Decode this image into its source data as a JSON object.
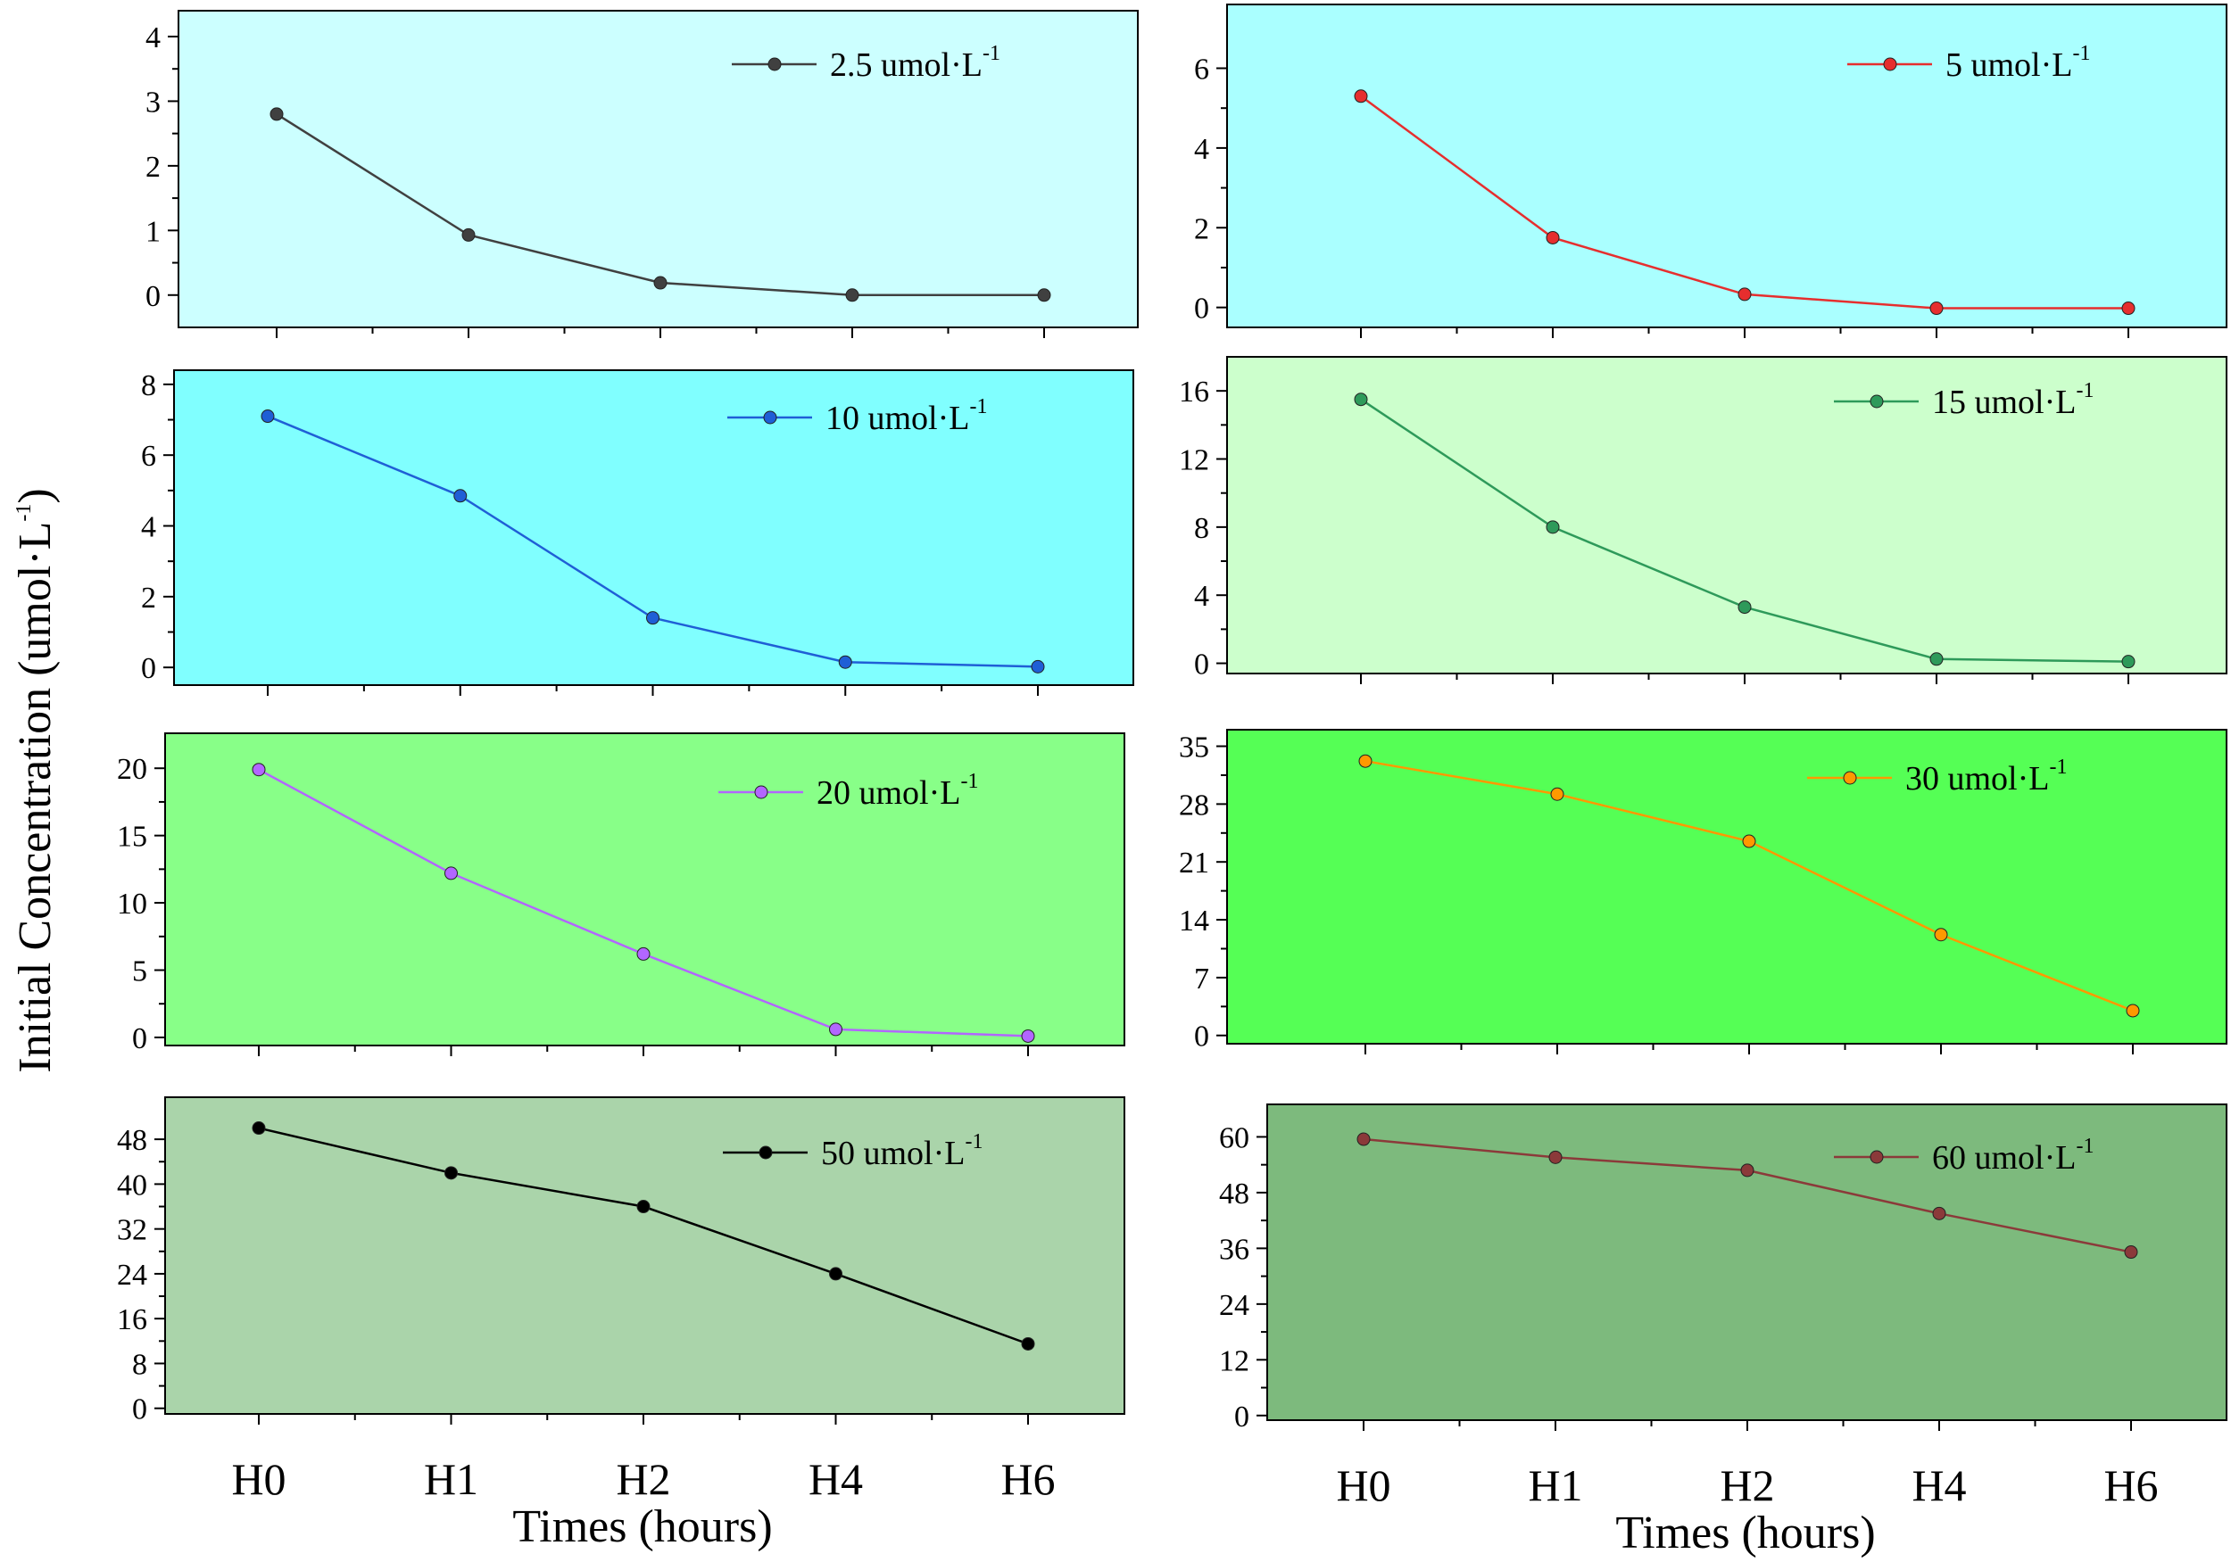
{
  "figure": {
    "ylabel": "Initial Concentration (umol·L",
    "ylabel_sup": "-1",
    "ylabel_tail": ")",
    "xlabel_left": "Times (hours)",
    "xlabel_right": "Times (hours)"
  },
  "chart_data": [
    {
      "type": "line",
      "categories": [
        "H0",
        "H1",
        "H2",
        "H4",
        "H6"
      ],
      "series": [
        {
          "name": "2.5 umol·L",
          "name_sup": "-1",
          "values": [
            2.8,
            0.93,
            0.19,
            0.0,
            0.0
          ],
          "color": "#404040"
        }
      ],
      "ylim": [
        -0.5,
        4.4
      ],
      "yticks": [
        0,
        1,
        2,
        3,
        4
      ],
      "background": "#ccffff"
    },
    {
      "type": "line",
      "categories": [
        "H0",
        "H1",
        "H2",
        "H4",
        "H6"
      ],
      "series": [
        {
          "name": "5 umol·L",
          "name_sup": "-1",
          "values": [
            5.3,
            1.75,
            0.33,
            -0.02,
            -0.02
          ],
          "color": "#e62e2e"
        }
      ],
      "ylim": [
        -0.5,
        7.6
      ],
      "yticks": [
        0,
        2,
        4,
        6
      ],
      "background": "#aaffff"
    },
    {
      "type": "line",
      "categories": [
        "H0",
        "H1",
        "H2",
        "H4",
        "H6"
      ],
      "series": [
        {
          "name": "10 umol·L",
          "name_sup": "-1",
          "values": [
            7.1,
            4.85,
            1.4,
            0.15,
            0.02
          ],
          "color": "#1f5fd6"
        }
      ],
      "ylim": [
        -0.5,
        8.4
      ],
      "yticks": [
        0,
        2,
        4,
        6,
        8
      ],
      "background": "#80ffff"
    },
    {
      "type": "line",
      "categories": [
        "H0",
        "H1",
        "H2",
        "H4",
        "H6"
      ],
      "series": [
        {
          "name": "15 umol·L",
          "name_sup": "-1",
          "values": [
            15.5,
            8.0,
            3.3,
            0.25,
            0.1
          ],
          "color": "#2e9a5a"
        }
      ],
      "ylim": [
        -0.6,
        18.0
      ],
      "yticks": [
        0,
        4,
        8,
        12,
        16
      ],
      "background": "#ccffcc"
    },
    {
      "type": "line",
      "categories": [
        "H0",
        "H1",
        "H2",
        "H4",
        "H6"
      ],
      "series": [
        {
          "name": "20 umol·L",
          "name_sup": "-1",
          "values": [
            19.9,
            12.2,
            6.2,
            0.6,
            0.1
          ],
          "color": "#b266ff"
        }
      ],
      "ylim": [
        -0.6,
        22.6
      ],
      "yticks": [
        0,
        5,
        10,
        15,
        20
      ],
      "background": "#88ff88"
    },
    {
      "type": "line",
      "categories": [
        "H0",
        "H1",
        "H2",
        "H4",
        "H6"
      ],
      "series": [
        {
          "name": "30 umol·L",
          "name_sup": "-1",
          "values": [
            33.2,
            29.2,
            23.5,
            12.2,
            3.0
          ],
          "color": "#ff9900"
        }
      ],
      "ylim": [
        -1.0,
        37.0
      ],
      "yticks": [
        0,
        7,
        14,
        21,
        28,
        35
      ],
      "background": "#55ff55"
    },
    {
      "type": "line",
      "categories": [
        "H0",
        "H1",
        "H2",
        "H4",
        "H6"
      ],
      "series": [
        {
          "name": "50 umol·L",
          "name_sup": "-1",
          "values": [
            50.0,
            42.0,
            36.0,
            24.0,
            11.5
          ],
          "color": "#000000"
        }
      ],
      "ylim": [
        -1.0,
        55.5
      ],
      "yticks": [
        0,
        8,
        16,
        24,
        32,
        40,
        48
      ],
      "background": "#aad4aa"
    },
    {
      "type": "line",
      "categories": [
        "H0",
        "H1",
        "H2",
        "H4",
        "H6"
      ],
      "series": [
        {
          "name": "60 umol·L",
          "name_sup": "-1",
          "values": [
            59.5,
            55.6,
            52.8,
            43.5,
            35.2
          ],
          "color": "#8b3a3a"
        }
      ],
      "ylim": [
        -1.0,
        67.0
      ],
      "yticks": [
        0,
        12,
        24,
        36,
        48,
        60
      ],
      "background": "#7dba7d"
    }
  ]
}
